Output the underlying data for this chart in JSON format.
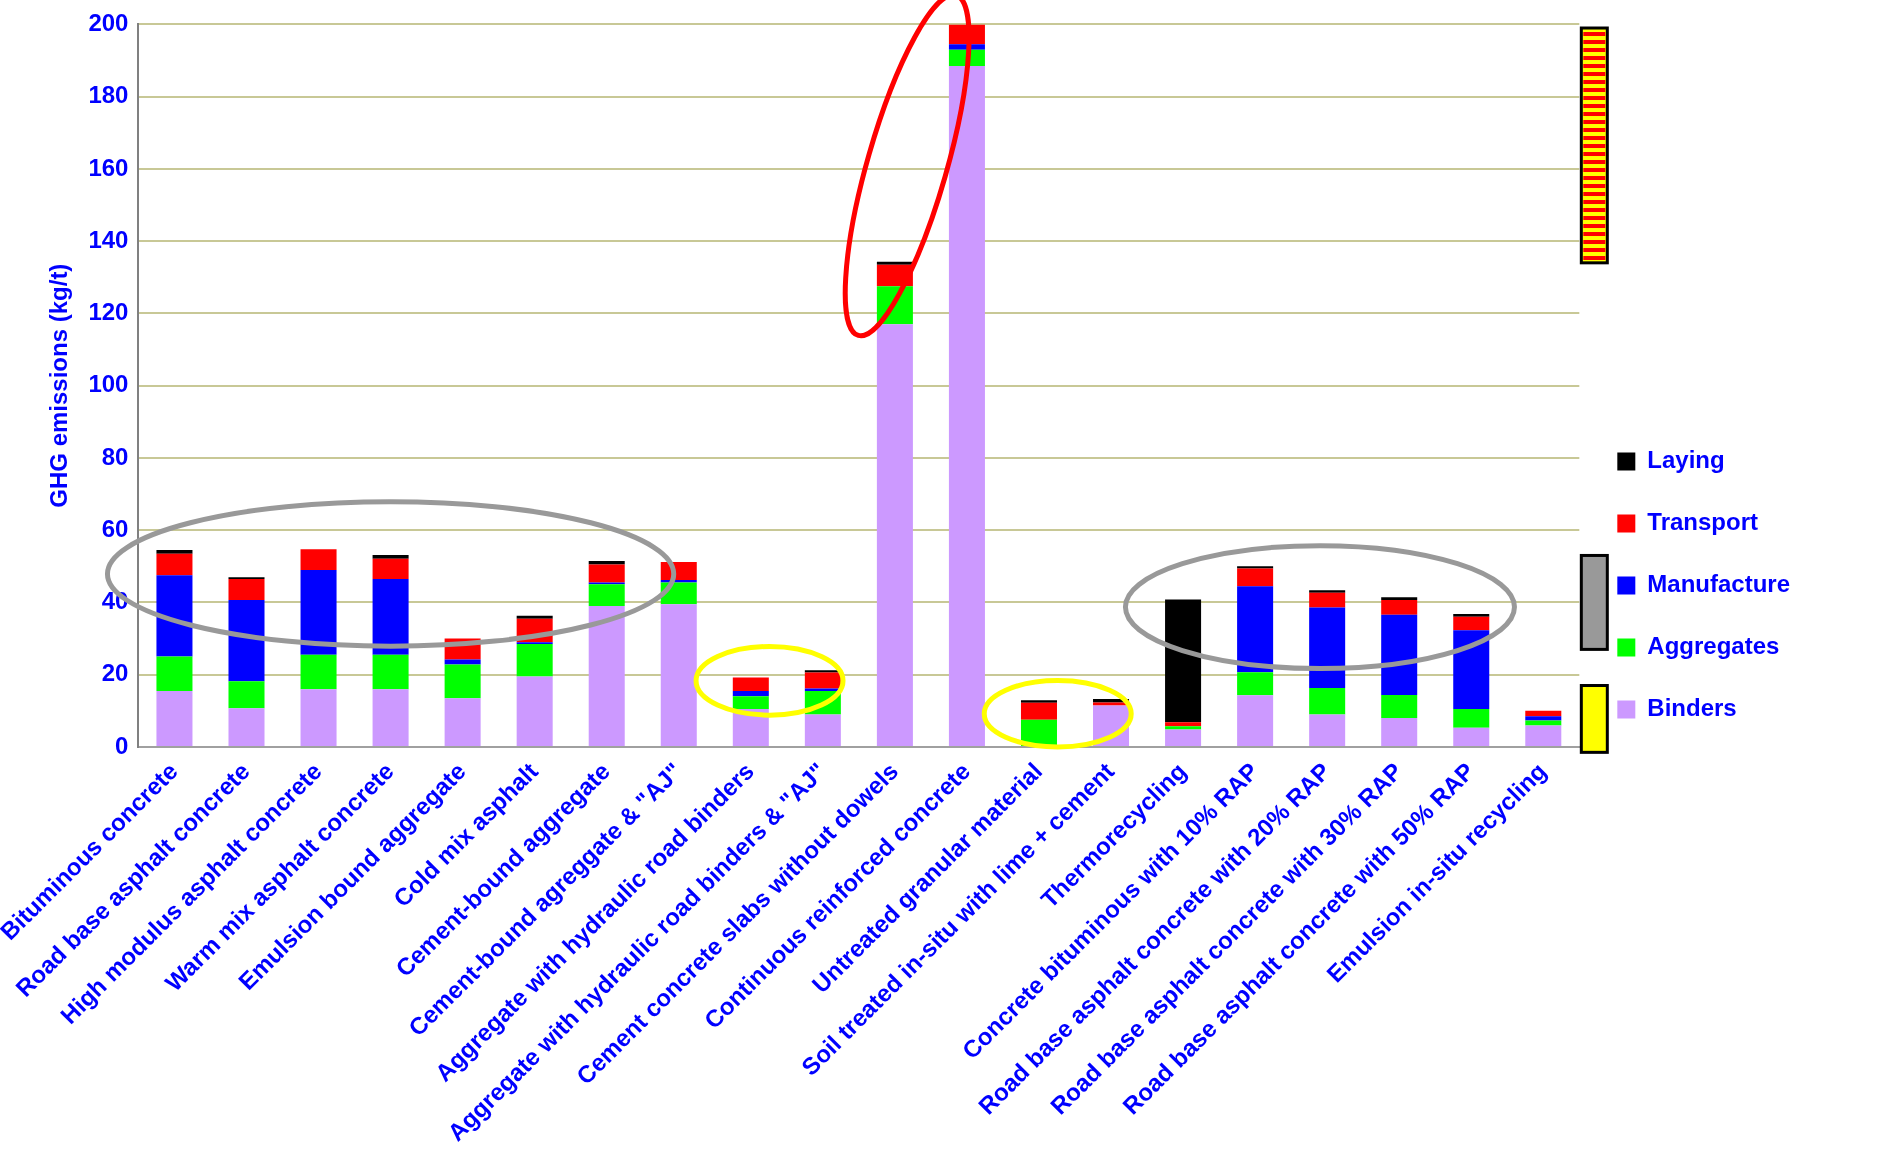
{
  "chart_data": {
    "type": "bar",
    "stacked": true,
    "ylabel": "GHG emissions (kg/t)",
    "categories": [
      "Bituminous concrete",
      "Road base asphalt concrete",
      "High modulus asphalt concrete",
      "Warm mix asphalt concrete",
      "Emulsion bound aggregate",
      "Cold mix asphalt",
      "Cement-bound aggregate",
      "Cement-bound agreggate & \"AJ\"",
      "Aggregate with hydraulic road binders",
      "Aggregate with hydraulic road binders & \"AJ\"",
      "Cement concrete slabs without dowels",
      "Continuous reinforced concrete",
      "Untreated granular material",
      "Soil treated in-situ with lime + cement",
      "Thermorecycling",
      "Concrete bituminous with 10% RAP",
      "Road base asphalt concrete with 20% RAP",
      "Road base asphalt concrete with 30% RAP",
      "Road base asphalt concrete with 50% RAP",
      "Emulsion in-situ recycling"
    ],
    "series": [
      {
        "name": "Binders",
        "color": "#cc99ff",
        "values": [
          15.5,
          10.7,
          16,
          16,
          13.5,
          19.5,
          39,
          39.5,
          10.5,
          9,
          117,
          188.5,
          null,
          11.5,
          4.8,
          14.3,
          9,
          8,
          5.3,
          5.9
        ]
      },
      {
        "name": "Aggregates",
        "color": "#00ff00",
        "values": [
          9.5,
          7.5,
          9.5,
          9.5,
          9.3,
          9,
          6,
          6,
          3.5,
          6.5,
          10.5,
          4.5,
          7.5,
          0,
          0.9,
          6.4,
          7.3,
          6.4,
          5.2,
          1.4
        ]
      },
      {
        "name": "Manufacture",
        "color": "#0000ff",
        "values": [
          22.5,
          22.5,
          23.5,
          21,
          1.4,
          0.5,
          0.5,
          0.7,
          1.5,
          0.7,
          null,
          1.5,
          0,
          0,
          0,
          23.8,
          22.3,
          22.2,
          21.8,
          1.2
        ]
      },
      {
        "name": "Transport",
        "color": "#ff0000",
        "values": [
          6,
          5.8,
          5.7,
          5.6,
          5.8,
          6.5,
          5,
          5,
          3.7,
          4.4,
          6,
          5.5,
          4.7,
          0.8,
          1.1,
          4.9,
          4.1,
          4.1,
          3.7,
          1.5
        ]
      },
      {
        "name": "Laying",
        "color": "#000000",
        "values": [
          1,
          0.5,
          0,
          1,
          0,
          0.8,
          1,
          0,
          0,
          0.6,
          0.8,
          0,
          0.7,
          1,
          34,
          0.6,
          0.7,
          0.7,
          0.8,
          0
        ]
      }
    ],
    "ylim": [
      0,
      200
    ],
    "yticks": [
      0,
      20,
      40,
      60,
      80,
      100,
      120,
      140,
      160,
      180,
      200
    ],
    "grid": "y",
    "legend": "right"
  }
}
